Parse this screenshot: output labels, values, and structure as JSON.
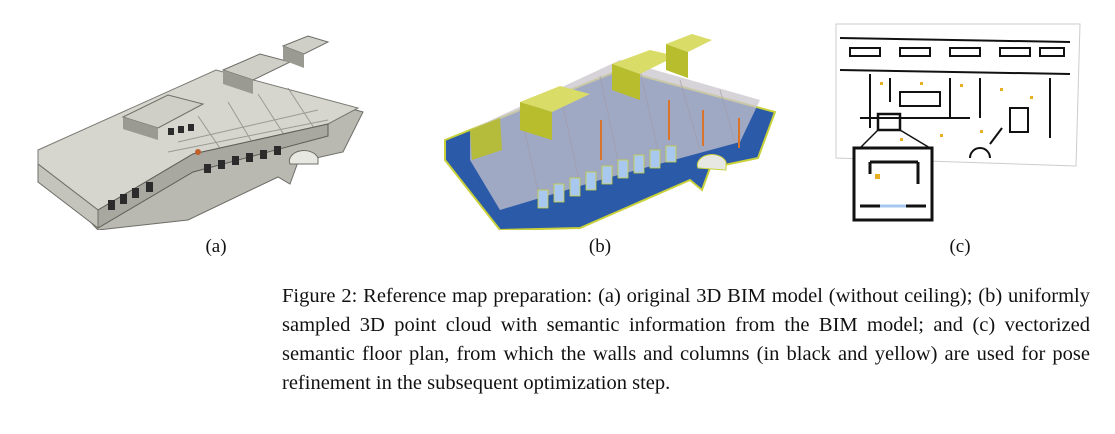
{
  "figure": {
    "panels": [
      {
        "label": "(a)",
        "content": "original 3D BIM model"
      },
      {
        "label": "(b)",
        "content": "3D point cloud"
      },
      {
        "label": "(c)",
        "content": "vectorized floor plan"
      }
    ],
    "caption": "Figure 2: Reference map preparation: (a) original 3D BIM model (without ceiling); (b) uniformly sampled 3D point cloud with semantic information from the BIM model; and (c) vectorized semantic floor plan, from which the walls and columns (in black and yellow) are used for pose refinement in the subsequent optimization step."
  },
  "colors": {
    "bim_roof": "#d6d6cf",
    "bim_wall": "#9a9a93",
    "cloud_floor": "#2a5aa8",
    "cloud_wall": "#c9d13a",
    "cloud_haze": "#c8c4cc",
    "plan_wall": "#111111",
    "plan_column": "#e8b020"
  }
}
